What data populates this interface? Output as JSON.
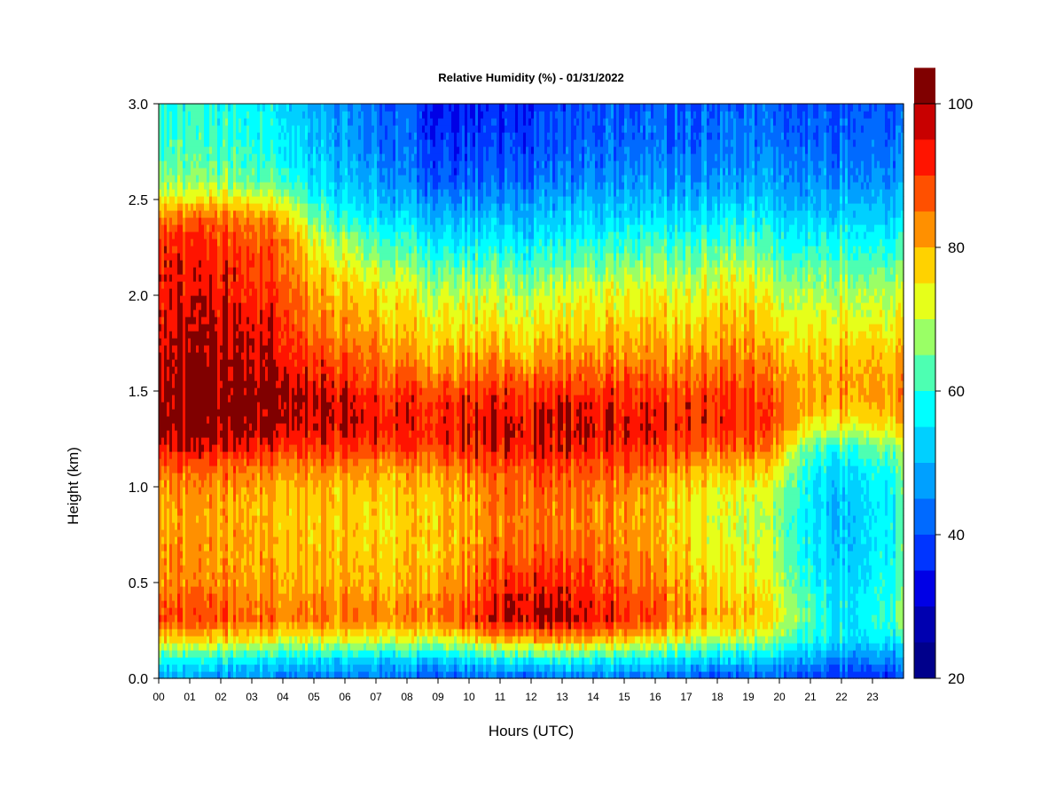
{
  "chart_data": {
    "type": "heatmap",
    "title": "Relative Humidity (%) - 01/31/2022",
    "xlabel": "Hours (UTC)",
    "ylabel": "Height (km)",
    "xlim": [
      0,
      24
    ],
    "ylim": [
      0,
      3
    ],
    "x_ticks": [
      "00",
      "01",
      "02",
      "03",
      "04",
      "05",
      "06",
      "07",
      "08",
      "09",
      "10",
      "11",
      "12",
      "13",
      "14",
      "15",
      "16",
      "17",
      "18",
      "19",
      "20",
      "21",
      "22",
      "23"
    ],
    "y_ticks": [
      "0.0",
      "0.5",
      "1.0",
      "1.5",
      "2.0",
      "2.5",
      "3.0"
    ],
    "x_hours": [
      0,
      1,
      2,
      3,
      4,
      5,
      6,
      7,
      8,
      9,
      10,
      11,
      12,
      13,
      14,
      15,
      16,
      17,
      18,
      19,
      20,
      21,
      22,
      23,
      24
    ],
    "heights_km": [
      0.0,
      0.1,
      0.2,
      0.3,
      0.4,
      0.5,
      0.6,
      0.7,
      0.8,
      0.9,
      1.0,
      1.1,
      1.2,
      1.3,
      1.4,
      1.5,
      1.6,
      1.7,
      1.8,
      1.9,
      2.0,
      2.1,
      2.2,
      2.3,
      2.4,
      2.5,
      2.6,
      2.7,
      2.8,
      2.9,
      3.0
    ],
    "rh_percent_by_hour": [
      [
        47,
        58,
        76,
        88,
        86,
        83,
        82,
        82,
        81,
        81,
        82,
        86,
        93,
        97,
        97,
        97,
        96,
        95,
        94,
        93,
        93,
        93,
        92,
        90,
        85,
        74,
        66,
        63,
        61,
        60,
        59
      ],
      [
        47,
        58,
        75,
        88,
        86,
        83,
        82,
        82,
        81,
        81,
        82,
        86,
        93,
        97,
        98,
        98,
        97,
        96,
        95,
        94,
        93,
        93,
        92,
        90,
        86,
        75,
        66,
        63,
        61,
        60,
        59
      ],
      [
        46,
        57,
        75,
        87,
        86,
        83,
        82,
        81,
        81,
        81,
        82,
        86,
        93,
        97,
        98,
        98,
        97,
        96,
        95,
        94,
        93,
        92,
        91,
        89,
        85,
        75,
        66,
        63,
        61,
        60,
        58
      ],
      [
        46,
        57,
        75,
        86,
        85,
        82,
        81,
        81,
        80,
        80,
        82,
        86,
        93,
        97,
        98,
        98,
        97,
        96,
        95,
        93,
        92,
        91,
        90,
        88,
        84,
        74,
        65,
        62,
        60,
        59,
        57
      ],
      [
        45,
        56,
        74,
        86,
        85,
        82,
        81,
        80,
        80,
        80,
        81,
        85,
        92,
        97,
        98,
        98,
        96,
        95,
        93,
        92,
        91,
        89,
        88,
        86,
        82,
        72,
        63,
        60,
        58,
        57,
        56
      ],
      [
        44,
        55,
        73,
        85,
        84,
        81,
        80,
        79,
        79,
        79,
        80,
        84,
        91,
        95,
        96,
        95,
        92,
        89,
        86,
        84,
        82,
        79,
        76,
        72,
        66,
        60,
        55,
        53,
        52,
        51,
        50
      ],
      [
        43,
        54,
        72,
        84,
        83,
        80,
        79,
        78,
        78,
        78,
        79,
        83,
        90,
        94,
        95,
        93,
        89,
        86,
        83,
        81,
        79,
        75,
        71,
        66,
        60,
        55,
        51,
        49,
        48,
        47,
        46
      ],
      [
        43,
        54,
        72,
        84,
        83,
        80,
        79,
        78,
        77,
        77,
        79,
        83,
        89,
        93,
        93,
        91,
        87,
        84,
        81,
        79,
        77,
        72,
        67,
        62,
        56,
        52,
        48,
        46,
        45,
        44,
        43
      ],
      [
        42,
        53,
        71,
        83,
        82,
        79,
        78,
        77,
        77,
        77,
        78,
        82,
        89,
        92,
        92,
        89,
        85,
        81,
        78,
        76,
        74,
        69,
        64,
        59,
        54,
        49,
        45,
        43,
        42,
        41,
        40
      ],
      [
        40,
        53,
        72,
        86,
        85,
        82,
        80,
        79,
        79,
        79,
        80,
        84,
        90,
        93,
        92,
        89,
        84,
        80,
        76,
        74,
        71,
        66,
        61,
        56,
        51,
        46,
        41,
        39,
        37,
        36,
        35
      ],
      [
        41,
        55,
        74,
        89,
        88,
        85,
        83,
        82,
        81,
        81,
        82,
        86,
        91,
        94,
        93,
        90,
        85,
        81,
        77,
        74,
        71,
        66,
        61,
        56,
        51,
        46,
        42,
        40,
        38,
        37,
        36
      ],
      [
        41,
        57,
        79,
        94,
        93,
        90,
        87,
        85,
        84,
        84,
        85,
        88,
        92,
        94,
        93,
        90,
        85,
        80,
        76,
        73,
        70,
        65,
        60,
        55,
        50,
        46,
        42,
        40,
        38,
        37,
        36
      ],
      [
        40,
        58,
        80,
        96,
        95,
        92,
        89,
        86,
        85,
        85,
        86,
        89,
        93,
        95,
        93,
        90,
        85,
        80,
        76,
        73,
        70,
        65,
        60,
        55,
        51,
        47,
        43,
        41,
        39,
        38,
        37
      ],
      [
        42,
        58,
        80,
        95,
        94,
        91,
        88,
        85,
        84,
        84,
        85,
        88,
        92,
        94,
        93,
        90,
        85,
        81,
        77,
        74,
        71,
        66,
        61,
        56,
        52,
        48,
        44,
        42,
        40,
        39,
        38
      ],
      [
        42,
        57,
        78,
        92,
        91,
        88,
        86,
        84,
        83,
        83,
        84,
        87,
        91,
        93,
        92,
        89,
        85,
        81,
        77,
        75,
        72,
        67,
        62,
        57,
        53,
        49,
        45,
        43,
        41,
        40,
        39
      ],
      [
        42,
        57,
        77,
        90,
        89,
        86,
        84,
        83,
        82,
        82,
        83,
        87,
        91,
        93,
        92,
        90,
        86,
        82,
        79,
        76,
        73,
        69,
        64,
        59,
        54,
        50,
        46,
        44,
        42,
        41,
        40
      ],
      [
        42,
        56,
        75,
        88,
        87,
        84,
        82,
        81,
        80,
        80,
        81,
        85,
        90,
        92,
        92,
        89,
        85,
        82,
        79,
        76,
        74,
        70,
        65,
        60,
        55,
        51,
        47,
        45,
        43,
        42,
        41
      ],
      [
        41,
        55,
        72,
        83,
        82,
        80,
        78,
        77,
        76,
        76,
        78,
        82,
        88,
        91,
        91,
        89,
        85,
        82,
        79,
        76,
        73,
        69,
        65,
        60,
        55,
        51,
        47,
        45,
        43,
        42,
        41
      ],
      [
        40,
        54,
        70,
        80,
        79,
        77,
        75,
        74,
        73,
        73,
        75,
        80,
        87,
        91,
        92,
        90,
        87,
        84,
        81,
        78,
        76,
        72,
        67,
        62,
        57,
        52,
        48,
        46,
        44,
        43,
        42
      ],
      [
        40,
        53,
        69,
        79,
        78,
        75,
        73,
        72,
        71,
        72,
        74,
        79,
        86,
        90,
        91,
        89,
        86,
        83,
        80,
        78,
        76,
        72,
        67,
        62,
        57,
        52,
        48,
        46,
        44,
        43,
        42
      ],
      [
        40,
        51,
        65,
        73,
        72,
        70,
        68,
        67,
        66,
        67,
        69,
        74,
        81,
        86,
        87,
        85,
        82,
        79,
        76,
        73,
        70,
        66,
        62,
        58,
        54,
        50,
        47,
        45,
        43,
        42,
        41
      ],
      [
        39,
        48,
        58,
        62,
        61,
        59,
        57,
        56,
        55,
        55,
        56,
        58,
        62,
        72,
        78,
        80,
        79,
        77,
        75,
        72,
        69,
        65,
        61,
        57,
        53,
        49,
        46,
        44,
        42,
        41,
        40
      ],
      [
        37,
        46,
        55,
        56,
        55,
        54,
        53,
        52,
        52,
        52,
        53,
        55,
        60,
        72,
        80,
        83,
        82,
        80,
        77,
        74,
        71,
        67,
        63,
        59,
        55,
        51,
        47,
        45,
        43,
        42,
        41
      ],
      [
        36,
        45,
        55,
        59,
        58,
        57,
        56,
        55,
        55,
        55,
        56,
        58,
        63,
        73,
        79,
        81,
        80,
        78,
        75,
        72,
        69,
        65,
        61,
        57,
        53,
        49,
        46,
        44,
        42,
        41,
        40
      ],
      [
        37,
        46,
        57,
        64,
        63,
        62,
        61,
        60,
        60,
        60,
        61,
        63,
        67,
        76,
        81,
        82,
        81,
        79,
        76,
        73,
        70,
        66,
        62,
        58,
        54,
        50,
        47,
        45,
        43,
        42,
        41
      ]
    ],
    "colorbar": {
      "range": [
        20,
        100
      ],
      "step": 5,
      "tick_values": [
        20,
        40,
        60,
        80,
        100
      ],
      "tick_labels": [
        "20",
        "40",
        "60",
        "80",
        "100"
      ],
      "colors": [
        "#00008b",
        "#0000b0",
        "#0000e6",
        "#0035ff",
        "#006aff",
        "#00a0ff",
        "#00d0ff",
        "#00ffff",
        "#4dffb2",
        "#9aff66",
        "#e6ff1a",
        "#ffd200",
        "#ff9000",
        "#ff5000",
        "#ff1400",
        "#c80000"
      ],
      "overflow_color": "#800000"
    },
    "grid": false,
    "legend": "colorbar-right"
  }
}
